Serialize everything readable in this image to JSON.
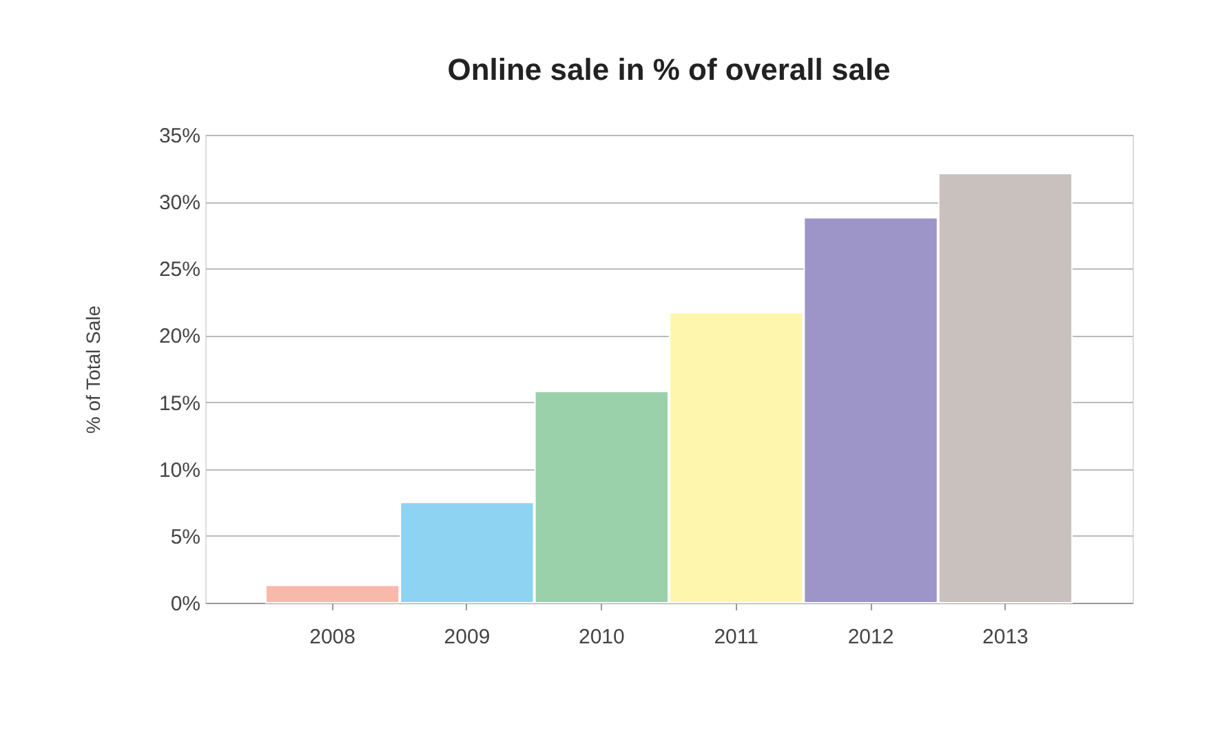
{
  "chart_data": {
    "type": "bar",
    "title": "Online sale in % of overall sale",
    "ylabel": "% of Total Sale",
    "categories": [
      "2008",
      "2009",
      "2010",
      "2011",
      "2012",
      "2013"
    ],
    "values": [
      1.3,
      7.5,
      15.8,
      21.7,
      28.8,
      32.1
    ],
    "colors": [
      "#f9b9aa",
      "#8fd3f3",
      "#9ad1ab",
      "#fff6ad",
      "#9d95c8",
      "#c9c1bd"
    ],
    "ylim": [
      0,
      35
    ],
    "yticks": [
      {
        "value": 0,
        "label": "0%"
      },
      {
        "value": 5,
        "label": "5%"
      },
      {
        "value": 10,
        "label": "10%"
      },
      {
        "value": 15,
        "label": "15%"
      },
      {
        "value": 20,
        "label": "20%"
      },
      {
        "value": 25,
        "label": "25%"
      },
      {
        "value": 30,
        "label": "30%"
      },
      {
        "value": 35,
        "label": "35%"
      }
    ],
    "grid": "y",
    "legend": false
  }
}
